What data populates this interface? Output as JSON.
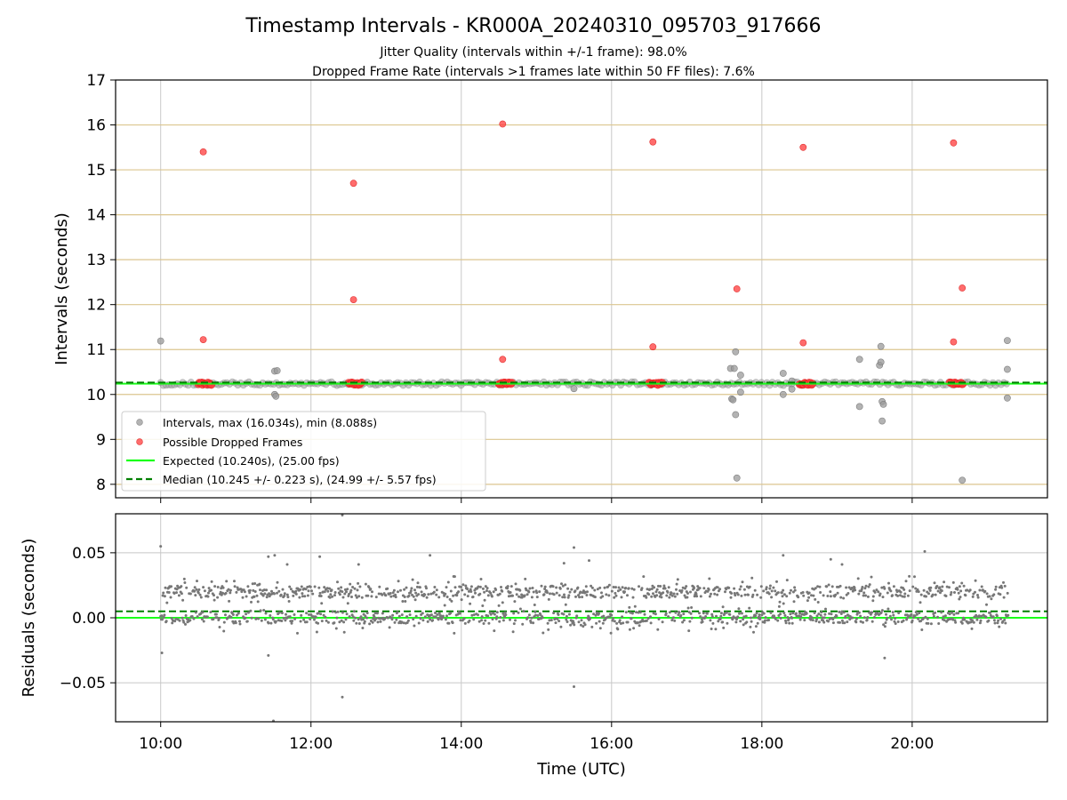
{
  "figure": {
    "title": "Timestamp Intervals - KR000A_20240310_095703_917666",
    "subtitle_1": "Jitter Quality (intervals within +/-1 frame): 98.0%",
    "subtitle_2": "Dropped Frame Rate (intervals >1 frames late within 50 FF files): 7.6%"
  },
  "chart_data": [
    {
      "type": "scatter",
      "xlabel": "",
      "ylabel": "Intervals (seconds)",
      "xlim": [
        "09:24",
        "21:48"
      ],
      "ylim": [
        7.7,
        17.0
      ],
      "x_ticks": [
        "10:00",
        "12:00",
        "14:00",
        "16:00",
        "18:00",
        "20:00"
      ],
      "y_ticks": [
        8,
        9,
        10,
        11,
        12,
        13,
        14,
        15,
        16,
        17
      ],
      "grid": true,
      "hlines": [
        8,
        9,
        10,
        11,
        12,
        13,
        14,
        15,
        16
      ],
      "hline_color": "#dcc68f",
      "legend_position": "lower-left",
      "series": [
        {
          "name": "Intervals, max (16.034s), min (8.088s)",
          "color": "#999999",
          "baseline": 10.24,
          "baseline_range": [
            "10:00",
            "21:17"
          ],
          "points": [
            {
              "t": "10:00",
              "y": 11.19
            },
            {
              "t": "11:31",
              "y": 10.52
            },
            {
              "t": "11:31",
              "y": 10.0
            },
            {
              "t": "11:32",
              "y": 9.96
            },
            {
              "t": "11:33",
              "y": 10.53
            },
            {
              "t": "15:30",
              "y": 10.13
            },
            {
              "t": "17:35",
              "y": 10.58
            },
            {
              "t": "17:36",
              "y": 9.9
            },
            {
              "t": "17:37",
              "y": 9.88
            },
            {
              "t": "17:38",
              "y": 10.58
            },
            {
              "t": "17:39",
              "y": 10.95
            },
            {
              "t": "17:39",
              "y": 9.55
            },
            {
              "t": "17:40",
              "y": 8.14
            },
            {
              "t": "17:43",
              "y": 10.43
            },
            {
              "t": "17:43",
              "y": 10.05
            },
            {
              "t": "18:17",
              "y": 10.47
            },
            {
              "t": "18:17",
              "y": 10.0
            },
            {
              "t": "18:24",
              "y": 10.3
            },
            {
              "t": "18:24",
              "y": 10.12
            },
            {
              "t": "19:18",
              "y": 10.78
            },
            {
              "t": "19:18",
              "y": 9.73
            },
            {
              "t": "19:34",
              "y": 10.65
            },
            {
              "t": "19:35",
              "y": 11.07
            },
            {
              "t": "19:35",
              "y": 10.72
            },
            {
              "t": "19:36",
              "y": 9.41
            },
            {
              "t": "19:36",
              "y": 9.84
            },
            {
              "t": "19:37",
              "y": 9.78
            },
            {
              "t": "20:40",
              "y": 8.09
            },
            {
              "t": "21:16",
              "y": 11.2
            },
            {
              "t": "21:16",
              "y": 10.56
            },
            {
              "t": "21:16",
              "y": 9.92
            }
          ]
        },
        {
          "name": "Possible Dropped Frames",
          "color": "#ff3b3b",
          "baseline": 10.24,
          "clusters": [
            [
              "10:30",
              "10:41"
            ],
            [
              "12:30",
              "12:41"
            ],
            [
              "14:30",
              "14:41"
            ],
            [
              "16:30",
              "16:41"
            ],
            [
              "18:30",
              "18:41"
            ],
            [
              "20:30",
              "20:41"
            ]
          ],
          "points": [
            {
              "t": "10:34",
              "y": 15.4
            },
            {
              "t": "10:34",
              "y": 11.22
            },
            {
              "t": "12:34",
              "y": 14.7
            },
            {
              "t": "12:34",
              "y": 12.11
            },
            {
              "t": "14:33",
              "y": 16.02
            },
            {
              "t": "14:33",
              "y": 10.78
            },
            {
              "t": "16:33",
              "y": 15.62
            },
            {
              "t": "16:33",
              "y": 11.06
            },
            {
              "t": "17:40",
              "y": 12.35
            },
            {
              "t": "18:33",
              "y": 15.5
            },
            {
              "t": "18:33",
              "y": 11.15
            },
            {
              "t": "20:33",
              "y": 15.6
            },
            {
              "t": "20:33",
              "y": 11.17
            },
            {
              "t": "20:40",
              "y": 12.37
            }
          ]
        },
        {
          "name": "Expected (10.240s), (25.00 fps)",
          "type": "hline",
          "y": 10.24,
          "color": "#1aff1a",
          "style": "solid"
        },
        {
          "name": "Median (10.245 +/- 0.223 s), (24.99 +/- 5.57 fps)",
          "type": "hline",
          "y": 10.245,
          "color": "#008000",
          "style": "dashed"
        }
      ]
    },
    {
      "type": "scatter",
      "xlabel": "Time (UTC)",
      "ylabel": "Residuals (seconds)",
      "xlim": [
        "09:24",
        "21:48"
      ],
      "ylim": [
        -0.08,
        0.08
      ],
      "x_ticks": [
        "10:00",
        "12:00",
        "14:00",
        "16:00",
        "18:00",
        "20:00"
      ],
      "y_ticks": [
        -0.05,
        0.0,
        0.05
      ],
      "y_tick_labels": [
        "−0.05",
        "0.00",
        "0.05"
      ],
      "grid": true,
      "series": [
        {
          "name": "Residuals",
          "color": "#777777",
          "range": [
            "10:00",
            "21:17"
          ],
          "band_low": 0.0,
          "band_high": 0.02,
          "scatter_min": -0.012,
          "scatter_max": 0.032,
          "outliers": [
            {
              "t": "10:00",
              "y": 0.055
            },
            {
              "t": "10:01",
              "y": -0.027
            },
            {
              "t": "11:26",
              "y": 0.047
            },
            {
              "t": "11:31",
              "y": 0.048
            },
            {
              "t": "11:41",
              "y": 0.041
            },
            {
              "t": "12:07",
              "y": 0.047
            },
            {
              "t": "12:25",
              "y": 0.079
            },
            {
              "t": "12:25",
              "y": -0.061
            },
            {
              "t": "12:38",
              "y": 0.041
            },
            {
              "t": "13:35",
              "y": 0.048
            },
            {
              "t": "15:22",
              "y": 0.042
            },
            {
              "t": "15:30",
              "y": 0.054
            },
            {
              "t": "15:30",
              "y": -0.053
            },
            {
              "t": "15:42",
              "y": 0.044
            },
            {
              "t": "18:17",
              "y": 0.048
            },
            {
              "t": "18:55",
              "y": 0.045
            },
            {
              "t": "19:04",
              "y": 0.041
            },
            {
              "t": "20:10",
              "y": 0.051
            },
            {
              "t": "11:30",
              "y": -0.081
            },
            {
              "t": "11:26",
              "y": -0.029
            },
            {
              "t": "19:38",
              "y": -0.031
            }
          ]
        },
        {
          "name": "Expected",
          "type": "hline",
          "y": 0.0,
          "color": "#1aff1a",
          "style": "solid"
        },
        {
          "name": "Median",
          "type": "hline",
          "y": 0.005,
          "color": "#008000",
          "style": "dashed"
        }
      ]
    }
  ]
}
